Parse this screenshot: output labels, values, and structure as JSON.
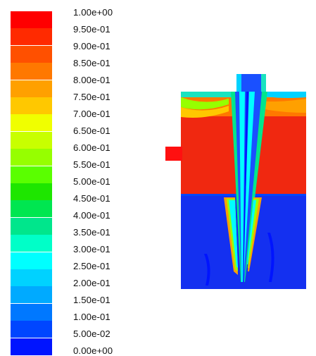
{
  "legend": {
    "labels": [
      "1.00e+00",
      "9.50e-01",
      "9.00e-01",
      "8.50e-01",
      "8.00e-01",
      "7.50e-01",
      "7.00e-01",
      "6.50e-01",
      "6.00e-01",
      "5.50e-01",
      "5.00e-01",
      "4.50e-01",
      "4.00e-01",
      "3.50e-01",
      "3.00e-01",
      "2.50e-01",
      "2.00e-01",
      "1.50e-01",
      "1.00e-01",
      "5.00e-02",
      "0.00e+00"
    ],
    "colors": [
      "#ff0000",
      "#ff2a00",
      "#ff5000",
      "#ff7800",
      "#ffa000",
      "#ffc800",
      "#f0ff00",
      "#c8ff00",
      "#96ff00",
      "#5aff00",
      "#1ee600",
      "#00e650",
      "#00e68c",
      "#00ffc8",
      "#00ffff",
      "#00d2ff",
      "#00aaff",
      "#0078ff",
      "#0046ff",
      "#0014ff"
    ]
  },
  "plot": {
    "upper_color": "#f02810",
    "lower_color": "#1430f0",
    "top_band_color": "#19e3c0",
    "inlet_color": "#ff1010"
  }
}
